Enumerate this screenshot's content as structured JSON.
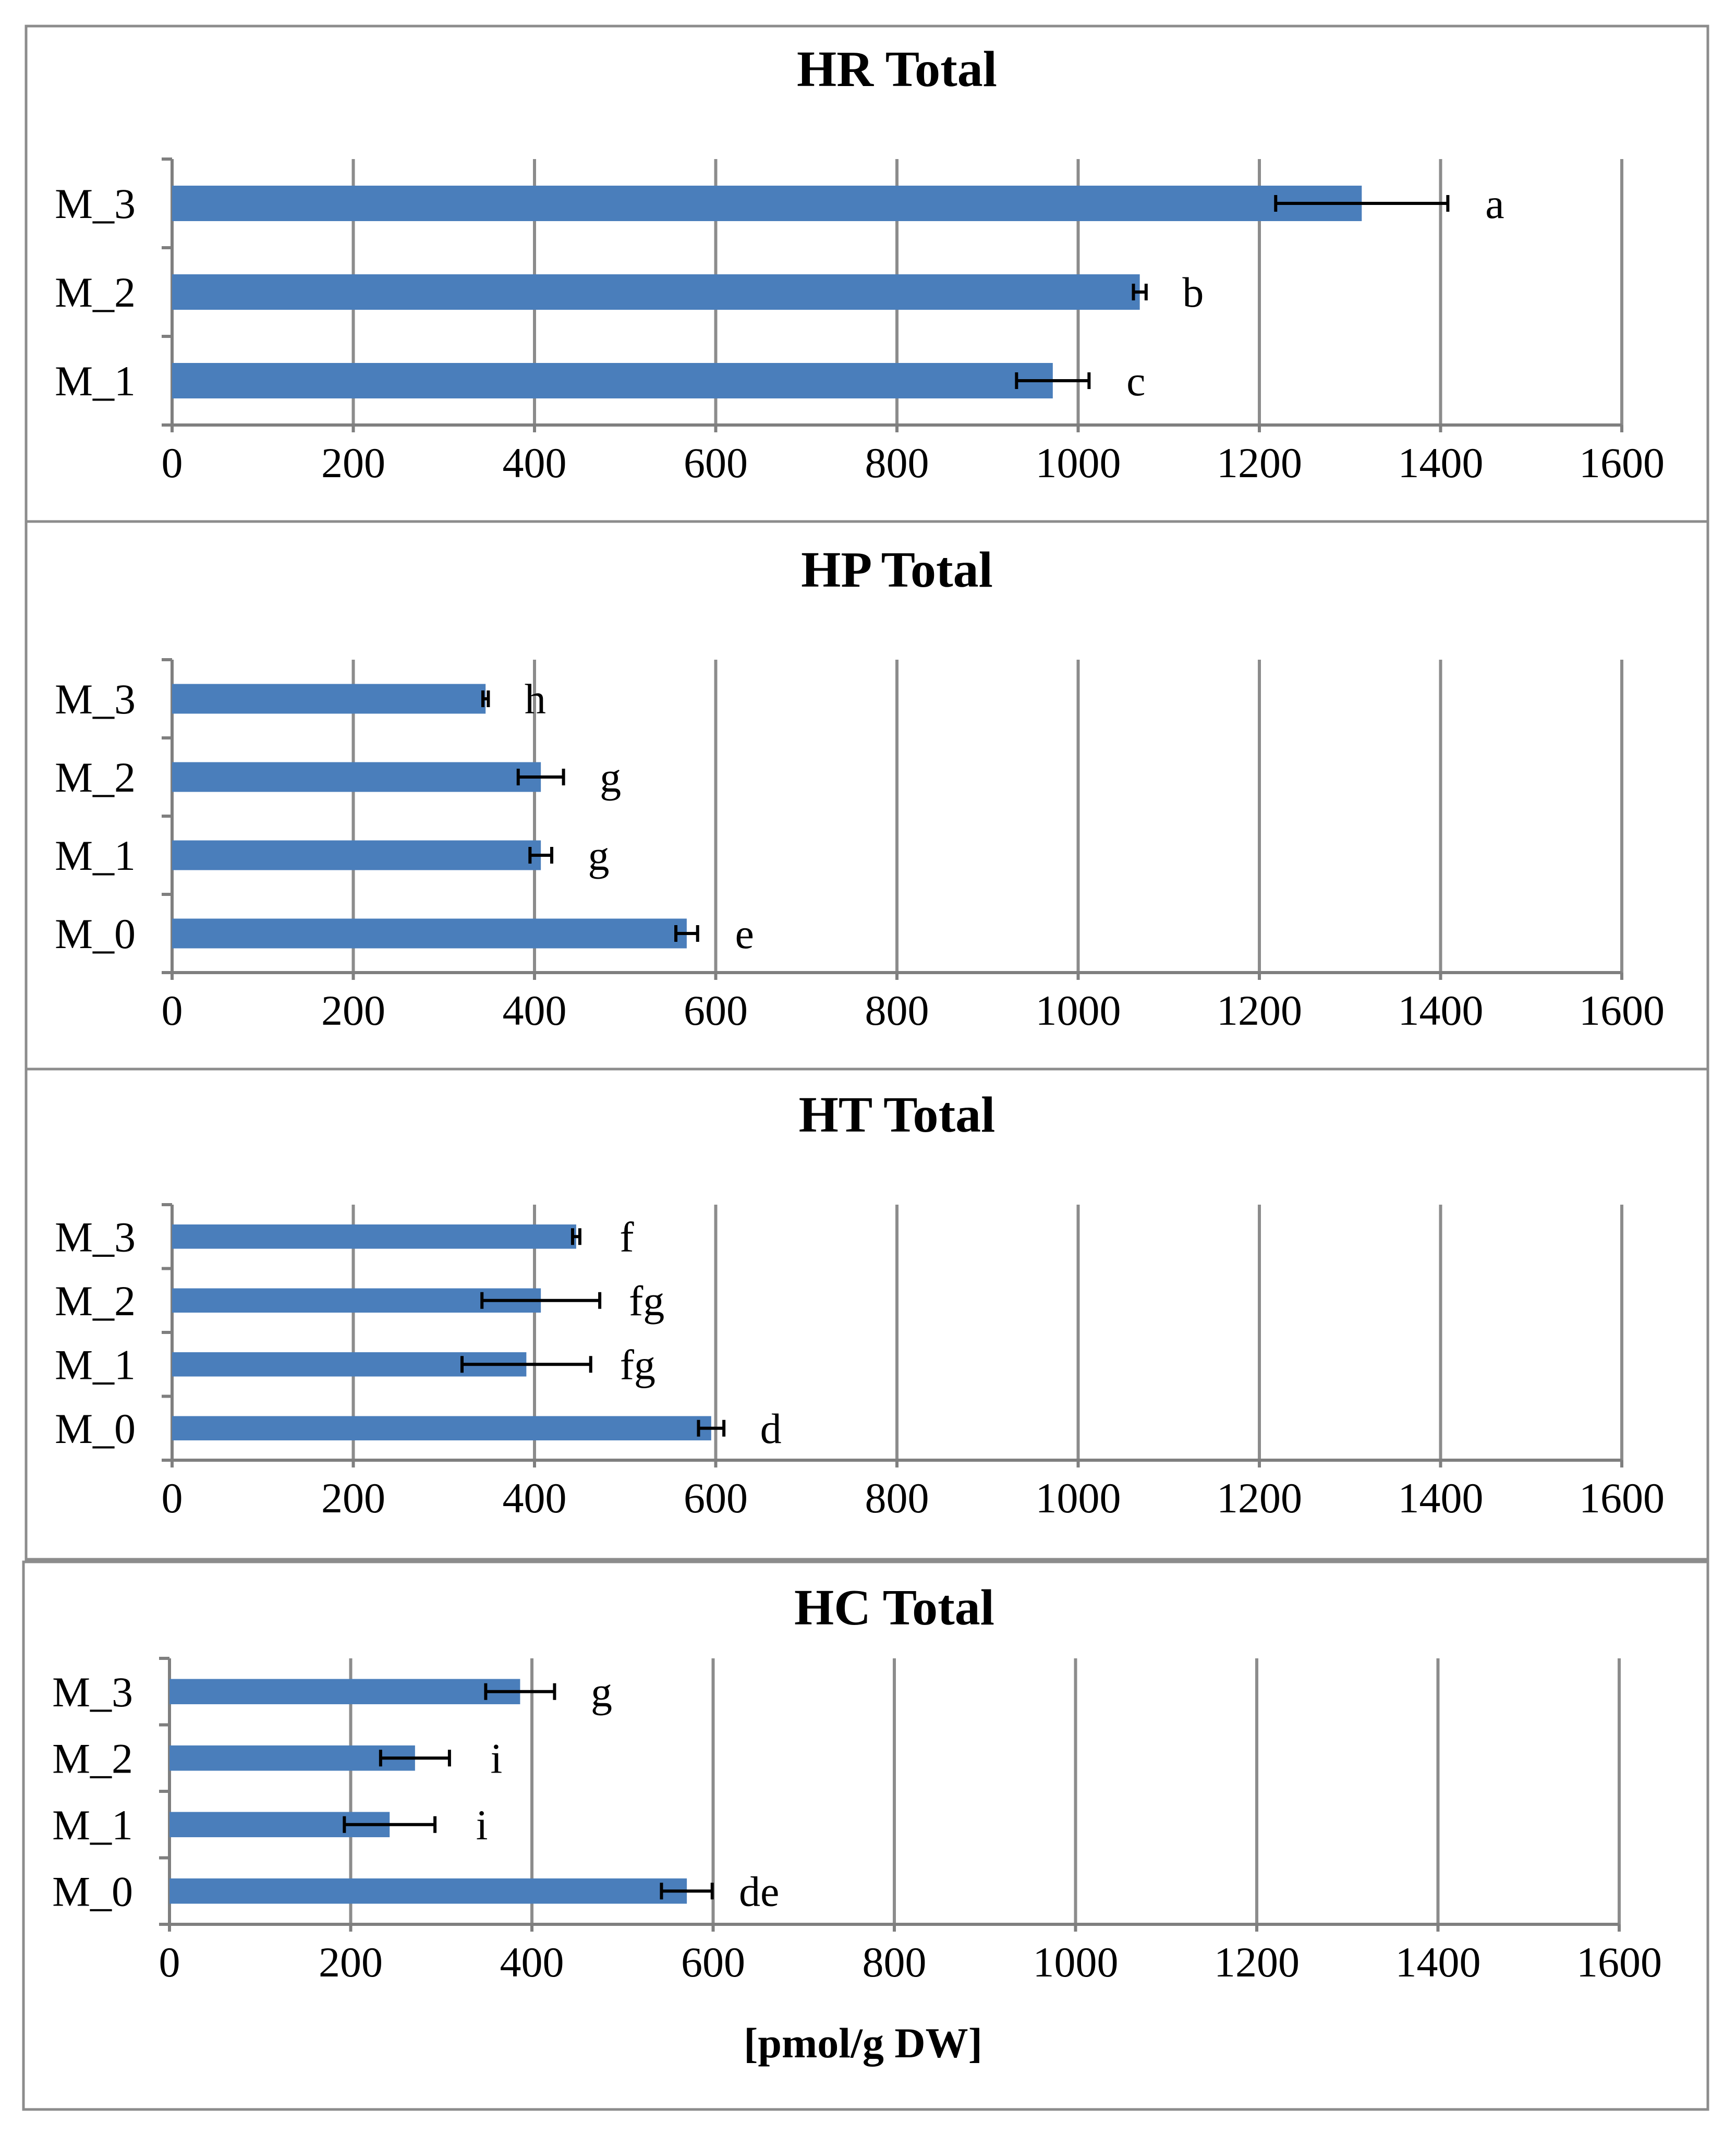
{
  "chart_data": [
    {
      "type": "bar",
      "orientation": "horizontal",
      "title": "HR Total",
      "categories": [
        "M_3",
        "M_2",
        "M_1"
      ],
      "values": [
        1313,
        1068,
        972
      ],
      "errors": [
        95,
        7,
        40
      ],
      "significance": [
        "a",
        "b",
        "c"
      ],
      "xlim": [
        0,
        1600
      ],
      "xticks": [
        "0",
        "200",
        "400",
        "600",
        "800",
        "1000",
        "1200",
        "1400",
        "1600"
      ],
      "xlabel": ""
    },
    {
      "type": "bar",
      "orientation": "horizontal",
      "title": "HP Total",
      "categories": [
        "M_3",
        "M_2",
        "M_1",
        "M_0"
      ],
      "values": [
        346,
        407,
        407,
        568
      ],
      "errors": [
        3,
        25,
        12,
        12
      ],
      "significance": [
        "h",
        "g",
        "g",
        "e"
      ],
      "xlim": [
        0,
        1600
      ],
      "xticks": [
        "0",
        "200",
        "400",
        "600",
        "800",
        "1000",
        "1200",
        "1400",
        "1600"
      ],
      "xlabel": ""
    },
    {
      "type": "bar",
      "orientation": "horizontal",
      "title": "HT Total",
      "categories": [
        "M_3",
        "M_2",
        "M_1",
        "M_0"
      ],
      "values": [
        446,
        407,
        391,
        595
      ],
      "errors": [
        4,
        65,
        71,
        14
      ],
      "significance": [
        "f",
        "fg",
        "fg",
        "d"
      ],
      "xlim": [
        0,
        1600
      ],
      "xticks": [
        "0",
        "200",
        "400",
        "600",
        "800",
        "1000",
        "1200",
        "1400",
        "1600"
      ],
      "xlabel": ""
    },
    {
      "type": "bar",
      "orientation": "horizontal",
      "title": "HC Total",
      "categories": [
        "M_3",
        "M_2",
        "M_1",
        "M_0"
      ],
      "values": [
        387,
        271,
        243,
        571
      ],
      "errors": [
        38,
        38,
        50,
        28
      ],
      "significance": [
        "g",
        "i",
        "i",
        "de"
      ],
      "xlim": [
        0,
        1600
      ],
      "xticks": [
        "0",
        "200",
        "400",
        "600",
        "800",
        "1000",
        "1200",
        "1400",
        "1600"
      ],
      "xlabel": "[pmol/g DW]"
    }
  ],
  "colors": {
    "bar": "#4a7ebb",
    "grid": "#8c8c8c",
    "error_bar": "#000000"
  }
}
